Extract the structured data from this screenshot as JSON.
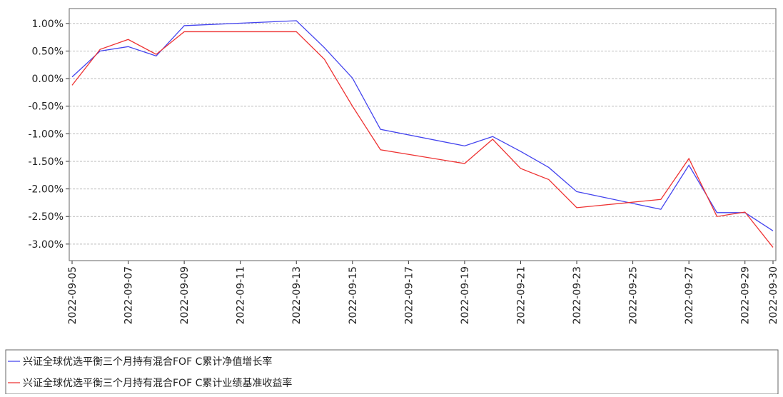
{
  "chart_data": {
    "type": "line",
    "x": [
      "2022-09-05",
      "2022-09-06",
      "2022-09-07",
      "2022-09-08",
      "2022-09-09",
      "2022-09-13",
      "2022-09-14",
      "2022-09-15",
      "2022-09-16",
      "2022-09-19",
      "2022-09-20",
      "2022-09-21",
      "2022-09-22",
      "2022-09-23",
      "2022-09-26",
      "2022-09-27",
      "2022-09-28",
      "2022-09-29",
      "2022-09-30"
    ],
    "series": [
      {
        "name": "兴证全球优选平衡三个月持有混合FOF C累计净值增长率",
        "color": "#4444ee",
        "values": [
          0.03,
          0.5,
          0.58,
          0.41,
          0.96,
          1.05,
          0.56,
          0.01,
          -0.92,
          -1.22,
          -1.05,
          -1.32,
          -1.61,
          -2.05,
          -2.37,
          -1.57,
          -2.43,
          -2.43,
          -2.76
        ]
      },
      {
        "name": "兴证全球优选平衡三个月持有混合FOF C累计业绩基准收益率",
        "color": "#ee3333",
        "values": [
          -0.12,
          0.53,
          0.71,
          0.44,
          0.85,
          0.85,
          0.35,
          -0.5,
          -1.29,
          -1.54,
          -1.1,
          -1.63,
          -1.83,
          -2.34,
          -2.19,
          -1.45,
          -2.5,
          -2.42,
          -3.06
        ]
      }
    ],
    "xlim": [
      "2022-09-05",
      "2022-09-30"
    ],
    "xticks": [
      "2022-09-05",
      "2022-09-07",
      "2022-09-09",
      "2022-09-11",
      "2022-09-13",
      "2022-09-15",
      "2022-09-17",
      "2022-09-19",
      "2022-09-21",
      "2022-09-23",
      "2022-09-25",
      "2022-09-27",
      "2022-09-29",
      "2022-09-30"
    ],
    "ylim": [
      -3.3,
      1.27
    ],
    "yticks": [
      {
        "value": 1,
        "label": "1.00%"
      },
      {
        "value": 0.5,
        "label": "0.50%"
      },
      {
        "value": 0,
        "label": "0.00%"
      },
      {
        "value": -0.5,
        "label": "-0.50%"
      },
      {
        "value": -1,
        "label": "-1.00%"
      },
      {
        "value": -1.5,
        "label": "-1.50%"
      },
      {
        "value": -2,
        "label": "-2.00%"
      },
      {
        "value": -2.5,
        "label": "-2.50%"
      },
      {
        "value": -3,
        "label": "-3.00%"
      }
    ],
    "grid": true
  }
}
